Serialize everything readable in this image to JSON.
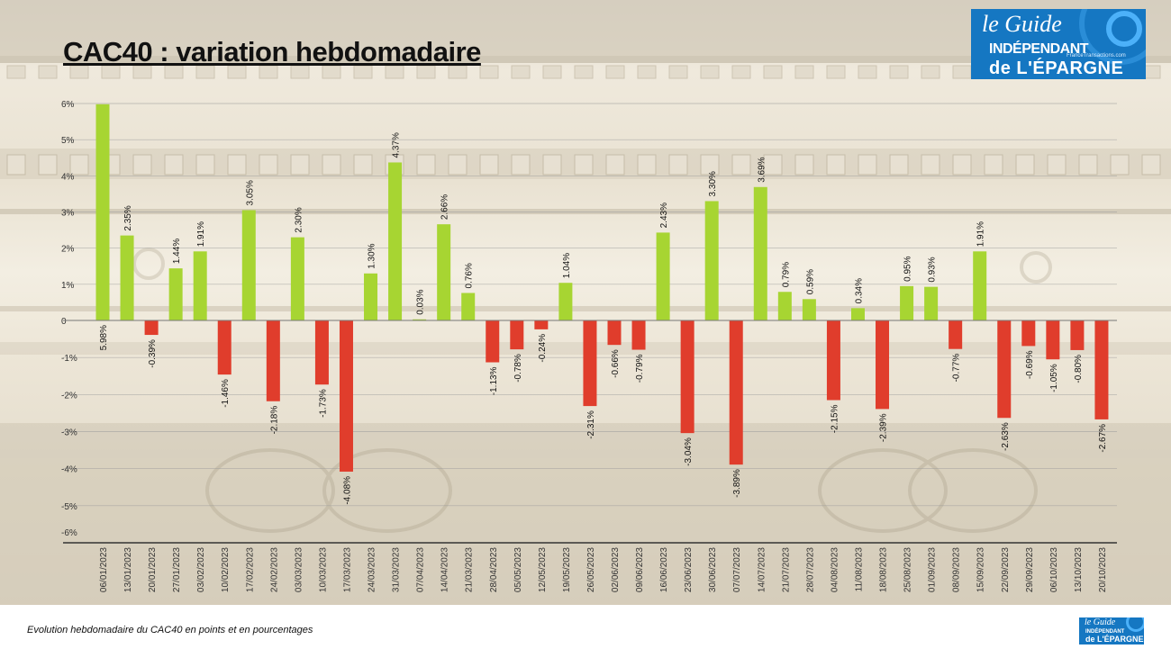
{
  "title": "CAC40 : variation hebdomadaire",
  "caption": "Evolution hebdomadaire du CAC40 en points et en pourcentages",
  "logo": {
    "line1": "le Guide",
    "line2": "INDÉPENDANT",
    "line3": "de L'ÉPARGNE",
    "site": "FranceTransactions.com",
    "small_line1": "le Guide",
    "small_line2": "INDÉPENDANT",
    "small_line3": "de L'ÉPARGNE"
  },
  "colors": {
    "positive": "#a7d532",
    "negative": "#e03d2c",
    "axis": "#333333",
    "grid": "#9a9a9a",
    "logo_bg": "#1577c2"
  },
  "chart_data": {
    "type": "bar",
    "title": "CAC40 : variation hebdomadaire",
    "xlabel": "",
    "ylabel": "",
    "ylim": [
      -6,
      6
    ],
    "yticks": [
      "6%",
      "5%",
      "4%",
      "3%",
      "2%",
      "1%",
      "0",
      "-1%",
      "-2%",
      "-3%",
      "-4%",
      "-5%",
      "-6%"
    ],
    "grid": true,
    "legend": "none",
    "categories": [
      "06/01/2023",
      "13/01/2023",
      "20/01/2023",
      "27/01/2023",
      "03/02/2023",
      "10/02/2023",
      "17/02/2023",
      "24/02/2023",
      "03/03/2023",
      "10/03/2023",
      "17/03/2023",
      "24/03/2023",
      "31/03/2023",
      "07/04/2023",
      "14/04/2023",
      "21/03/2023",
      "28/04/2023",
      "05/05/2023",
      "12/05/2023",
      "19/05/2023",
      "26/05/2023",
      "02/06/2023",
      "09/06/2023",
      "16/06/2023",
      "23/06/2023",
      "30/06/2023",
      "07/07/2023",
      "14/07/2023",
      "21/07/2023",
      "28/07/2023",
      "04/08/2023",
      "11/08/2023",
      "18/08/2023",
      "25/08/2023",
      "01/09/2023",
      "08/09/2023",
      "15/09/2023",
      "22/09/2023",
      "29/09/2023",
      "06/10/2023",
      "13/10/2023",
      "20/10/2023"
    ],
    "values": [
      5.98,
      2.35,
      -0.39,
      1.44,
      1.91,
      -1.46,
      3.05,
      -2.18,
      2.3,
      -1.73,
      -4.08,
      1.3,
      4.37,
      0.03,
      2.66,
      0.76,
      -1.13,
      -0.78,
      -0.24,
      1.04,
      -2.31,
      -0.66,
      -0.79,
      2.43,
      -3.04,
      3.3,
      -3.89,
      3.69,
      0.79,
      0.59,
      -2.15,
      0.34,
      -2.39,
      0.95,
      0.93,
      -0.77,
      1.91,
      -2.63,
      -0.69,
      -1.05,
      -0.8,
      -2.67
    ],
    "labels": [
      "5.98%",
      "2.35%",
      "-0.39%",
      "1.44%",
      "1.91%",
      "-1.46%",
      "3.05%",
      "-2.18%",
      "2.30%",
      "-1.73%",
      "-4.08%",
      "1.30%",
      "4.37%",
      "0.03%",
      "2.66%",
      "0.76%",
      "-1.13%",
      "-0.78%",
      "-0.24%",
      "1.04%",
      "-2.31%",
      "-0.66%",
      "-0.79%",
      "2.43%",
      "-3.04%",
      "3.30%",
      "-3.89%",
      "3.69%",
      "0.79%",
      "0.59%",
      "-2.15%",
      "0.34%",
      "-2.39%",
      "0.95%",
      "0.93%",
      "-0.77%",
      "1.91%",
      "-2.63%",
      "-0.69%",
      "-1.05%",
      "-0.80%",
      "-2.67%"
    ]
  }
}
